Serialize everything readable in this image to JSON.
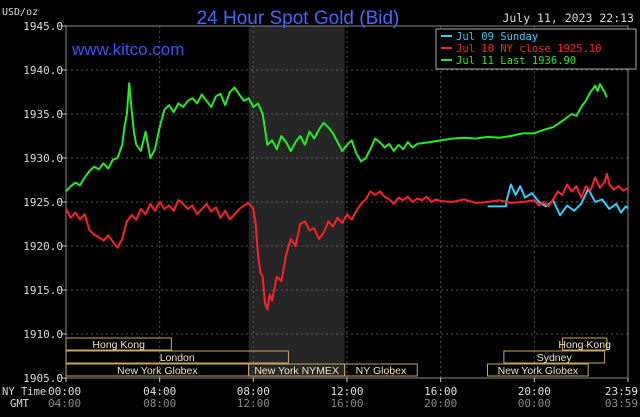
{
  "chart_data": {
    "type": "line",
    "title": "24 Hour Spot Gold (Bid)",
    "timestamp": "July 11, 2023 22:13",
    "watermark": "www.kitco.com",
    "y_unit_label": "USD/oz",
    "ylim": [
      1905.0,
      1945.0
    ],
    "y_ticks": [
      "1905.0",
      "1910.0",
      "1915.0",
      "1920.0",
      "1925.0",
      "1930.0",
      "1935.0",
      "1940.0",
      "1945.0"
    ],
    "xlim": [
      0,
      24
    ],
    "grid": true,
    "legend_position": "top-right",
    "x_ticks_ny": [
      "00:00",
      "04:00",
      "08:00",
      "12:00",
      "16:00",
      "20:00",
      "23:59"
    ],
    "x_ticks_gmt": [
      "04:00",
      "08:00",
      "12:00",
      "16:00",
      "20:00",
      "00:00",
      "03:59"
    ],
    "x_row_labels": [
      "NY Time",
      "GMT"
    ],
    "series": [
      {
        "name": "Jul 09 Sunday",
        "color": "#33ccff",
        "points": [
          [
            18,
            1924.5
          ],
          [
            18.8,
            1924.5
          ],
          [
            18.8,
            1925.0
          ],
          [
            19.0,
            1927.0
          ],
          [
            19.2,
            1925.8
          ],
          [
            19.4,
            1926.8
          ],
          [
            19.6,
            1925.5
          ],
          [
            19.9,
            1926.0
          ],
          [
            20.2,
            1925.0
          ],
          [
            20.5,
            1924.5
          ],
          [
            20.8,
            1925.2
          ],
          [
            21.1,
            1923.5
          ],
          [
            21.4,
            1924.6
          ],
          [
            21.7,
            1924.0
          ],
          [
            22.0,
            1924.8
          ],
          [
            22.3,
            1926.5
          ],
          [
            22.6,
            1925.0
          ],
          [
            22.9,
            1925.3
          ],
          [
            23.2,
            1924.2
          ],
          [
            23.5,
            1924.8
          ],
          [
            23.7,
            1923.8
          ],
          [
            23.9,
            1924.5
          ],
          [
            24.0,
            1924.3
          ]
        ]
      },
      {
        "name": "Jul 10 NY close 1925.10",
        "color": "#ff2222",
        "points": [
          [
            0,
            1924.2
          ],
          [
            0.2,
            1923.2
          ],
          [
            0.4,
            1923.8
          ],
          [
            0.6,
            1923.0
          ],
          [
            0.8,
            1923.6
          ],
          [
            1.0,
            1921.8
          ],
          [
            1.2,
            1921.3
          ],
          [
            1.4,
            1921.0
          ],
          [
            1.6,
            1920.6
          ],
          [
            1.8,
            1921.2
          ],
          [
            2.0,
            1920.5
          ],
          [
            2.2,
            1919.8
          ],
          [
            2.4,
            1920.8
          ],
          [
            2.6,
            1922.8
          ],
          [
            2.8,
            1923.5
          ],
          [
            3.0,
            1923.0
          ],
          [
            3.2,
            1924.2
          ],
          [
            3.4,
            1923.6
          ],
          [
            3.6,
            1924.8
          ],
          [
            3.8,
            1924.0
          ],
          [
            4.0,
            1925.0
          ],
          [
            4.2,
            1924.2
          ],
          [
            4.4,
            1924.6
          ],
          [
            4.6,
            1924.0
          ],
          [
            4.8,
            1925.2
          ],
          [
            5.0,
            1924.8
          ],
          [
            5.2,
            1924.2
          ],
          [
            5.4,
            1924.6
          ],
          [
            5.6,
            1923.6
          ],
          [
            5.8,
            1924.2
          ],
          [
            6.0,
            1924.8
          ],
          [
            6.2,
            1923.9
          ],
          [
            6.4,
            1924.4
          ],
          [
            6.6,
            1923.2
          ],
          [
            6.8,
            1924.0
          ],
          [
            7.0,
            1923.0
          ],
          [
            7.2,
            1923.6
          ],
          [
            7.4,
            1924.2
          ],
          [
            7.6,
            1924.6
          ],
          [
            7.8,
            1924.9
          ],
          [
            8.0,
            1924.2
          ],
          [
            8.1,
            1922.5
          ],
          [
            8.2,
            1919.0
          ],
          [
            8.3,
            1917.0
          ],
          [
            8.4,
            1916.5
          ],
          [
            8.5,
            1913.5
          ],
          [
            8.6,
            1912.8
          ],
          [
            8.7,
            1914.5
          ],
          [
            8.8,
            1913.8
          ],
          [
            9.0,
            1916.5
          ],
          [
            9.2,
            1916.0
          ],
          [
            9.4,
            1919.0
          ],
          [
            9.6,
            1920.8
          ],
          [
            9.8,
            1920.0
          ],
          [
            10.0,
            1922.5
          ],
          [
            10.2,
            1922.8
          ],
          [
            10.4,
            1921.8
          ],
          [
            10.6,
            1922.0
          ],
          [
            10.8,
            1920.8
          ],
          [
            11.0,
            1921.5
          ],
          [
            11.2,
            1922.8
          ],
          [
            11.4,
            1922.2
          ],
          [
            11.6,
            1923.2
          ],
          [
            11.8,
            1922.6
          ],
          [
            12.0,
            1923.6
          ],
          [
            12.2,
            1923.0
          ],
          [
            12.4,
            1924.0
          ],
          [
            12.6,
            1924.8
          ],
          [
            12.8,
            1925.3
          ],
          [
            13.0,
            1926.2
          ],
          [
            13.2,
            1925.8
          ],
          [
            13.4,
            1926.2
          ],
          [
            13.6,
            1925.6
          ],
          [
            13.8,
            1925.3
          ],
          [
            14.0,
            1924.8
          ],
          [
            14.2,
            1925.5
          ],
          [
            14.4,
            1925.2
          ],
          [
            14.6,
            1925.6
          ],
          [
            14.8,
            1925.0
          ],
          [
            15.0,
            1925.4
          ],
          [
            15.2,
            1925.2
          ],
          [
            15.4,
            1925.6
          ],
          [
            15.6,
            1925.0
          ],
          [
            15.8,
            1925.3
          ],
          [
            16.0,
            1925.1
          ],
          [
            16.5,
            1925.0
          ],
          [
            17.0,
            1925.3
          ],
          [
            17.5,
            1924.9
          ],
          [
            18.0,
            1925.0
          ],
          [
            18.5,
            1925.2
          ],
          [
            19.0,
            1924.9
          ],
          [
            19.5,
            1925.0
          ],
          [
            20.0,
            1925.2
          ],
          [
            20.2,
            1924.6
          ],
          [
            20.4,
            1925.0
          ],
          [
            20.6,
            1924.5
          ],
          [
            20.8,
            1925.3
          ],
          [
            21.0,
            1926.2
          ],
          [
            21.2,
            1925.8
          ],
          [
            21.4,
            1927.0
          ],
          [
            21.6,
            1926.2
          ],
          [
            21.8,
            1926.8
          ],
          [
            22.0,
            1925.5
          ],
          [
            22.2,
            1926.8
          ],
          [
            22.4,
            1926.3
          ],
          [
            22.6,
            1927.8
          ],
          [
            22.8,
            1926.6
          ],
          [
            23.0,
            1927.3
          ],
          [
            23.1,
            1928.2
          ],
          [
            23.2,
            1927.0
          ],
          [
            23.4,
            1926.4
          ],
          [
            23.6,
            1926.8
          ],
          [
            23.8,
            1926.3
          ],
          [
            24.0,
            1926.6
          ]
        ]
      },
      {
        "name": "Jul 11 Last 1936.90",
        "color": "#22ee22",
        "points": [
          [
            0,
            1926.2
          ],
          [
            0.2,
            1926.8
          ],
          [
            0.4,
            1927.2
          ],
          [
            0.6,
            1926.9
          ],
          [
            0.8,
            1927.8
          ],
          [
            1.0,
            1928.5
          ],
          [
            1.2,
            1929.0
          ],
          [
            1.4,
            1928.7
          ],
          [
            1.6,
            1929.4
          ],
          [
            1.8,
            1928.8
          ],
          [
            2.0,
            1929.8
          ],
          [
            2.2,
            1930.0
          ],
          [
            2.4,
            1931.5
          ],
          [
            2.5,
            1933.5
          ],
          [
            2.6,
            1935.0
          ],
          [
            2.7,
            1938.5
          ],
          [
            2.8,
            1935.5
          ],
          [
            2.9,
            1933.0
          ],
          [
            3.0,
            1931.5
          ],
          [
            3.2,
            1930.8
          ],
          [
            3.4,
            1933.0
          ],
          [
            3.6,
            1930.0
          ],
          [
            3.8,
            1931.0
          ],
          [
            4.0,
            1933.5
          ],
          [
            4.2,
            1935.5
          ],
          [
            4.4,
            1936.0
          ],
          [
            4.6,
            1935.2
          ],
          [
            4.8,
            1936.2
          ],
          [
            5.0,
            1935.8
          ],
          [
            5.2,
            1936.5
          ],
          [
            5.4,
            1936.8
          ],
          [
            5.6,
            1936.2
          ],
          [
            5.8,
            1937.2
          ],
          [
            6.0,
            1936.5
          ],
          [
            6.2,
            1935.8
          ],
          [
            6.4,
            1937.0
          ],
          [
            6.6,
            1937.3
          ],
          [
            6.8,
            1936.0
          ],
          [
            7.0,
            1937.5
          ],
          [
            7.2,
            1938.0
          ],
          [
            7.4,
            1937.2
          ],
          [
            7.6,
            1936.5
          ],
          [
            7.8,
            1936.8
          ],
          [
            8.0,
            1935.8
          ],
          [
            8.2,
            1936.2
          ],
          [
            8.4,
            1935.0
          ],
          [
            8.6,
            1931.5
          ],
          [
            8.8,
            1932.0
          ],
          [
            9.0,
            1931.0
          ],
          [
            9.2,
            1932.5
          ],
          [
            9.4,
            1931.8
          ],
          [
            9.6,
            1930.8
          ],
          [
            9.8,
            1931.8
          ],
          [
            10.0,
            1932.5
          ],
          [
            10.2,
            1931.5
          ],
          [
            10.4,
            1933.0
          ],
          [
            10.6,
            1932.2
          ],
          [
            10.8,
            1933.2
          ],
          [
            11.0,
            1934.0
          ],
          [
            11.2,
            1933.5
          ],
          [
            11.4,
            1932.8
          ],
          [
            11.6,
            1931.8
          ],
          [
            11.8,
            1930.8
          ],
          [
            12.0,
            1931.5
          ],
          [
            12.2,
            1932.0
          ],
          [
            12.4,
            1930.5
          ],
          [
            12.6,
            1929.6
          ],
          [
            12.8,
            1930.0
          ],
          [
            13.0,
            1931.0
          ],
          [
            13.2,
            1932.2
          ],
          [
            13.4,
            1931.8
          ],
          [
            13.6,
            1931.2
          ],
          [
            13.8,
            1931.6
          ],
          [
            14.0,
            1930.8
          ],
          [
            14.2,
            1931.5
          ],
          [
            14.4,
            1931.0
          ],
          [
            14.6,
            1931.8
          ],
          [
            14.8,
            1931.2
          ],
          [
            15.0,
            1931.6
          ],
          [
            15.5,
            1931.8
          ],
          [
            16.0,
            1932.0
          ],
          [
            16.5,
            1932.2
          ],
          [
            17.0,
            1932.3
          ],
          [
            17.5,
            1932.2
          ],
          [
            18.0,
            1932.4
          ],
          [
            18.5,
            1932.3
          ],
          [
            19.0,
            1932.5
          ],
          [
            19.5,
            1932.8
          ],
          [
            20.0,
            1932.8
          ],
          [
            20.4,
            1933.2
          ],
          [
            20.8,
            1933.5
          ],
          [
            21.2,
            1934.2
          ],
          [
            21.6,
            1935.0
          ],
          [
            21.8,
            1934.8
          ],
          [
            22.0,
            1935.8
          ],
          [
            22.2,
            1936.5
          ],
          [
            22.4,
            1937.5
          ],
          [
            22.6,
            1938.2
          ],
          [
            22.7,
            1937.6
          ],
          [
            22.8,
            1938.4
          ],
          [
            23.0,
            1937.5
          ],
          [
            23.1,
            1936.9
          ]
        ]
      }
    ],
    "sessions": [
      {
        "label": "Hong Kong",
        "row": 0,
        "start": 0,
        "end": 4.5
      },
      {
        "label": "London",
        "row": 1,
        "start": 0,
        "end": 9.5
      },
      {
        "label": "New York Globex",
        "row": 2,
        "start": 0,
        "end": 7.8
      },
      {
        "label": "New York NYMEX",
        "row": 2,
        "start": 7.8,
        "end": 11.9
      },
      {
        "label": "NY Globex",
        "row": 2,
        "start": 11.9,
        "end": 15.0
      },
      {
        "label": "Hong Kong",
        "row": 0,
        "start": 21.2,
        "end": 23.1
      },
      {
        "label": "Sydney",
        "row": 1,
        "start": 18.7,
        "end": 23.0
      },
      {
        "label": "New York Globex",
        "row": 2,
        "start": 18.0,
        "end": 22.3
      }
    ]
  }
}
